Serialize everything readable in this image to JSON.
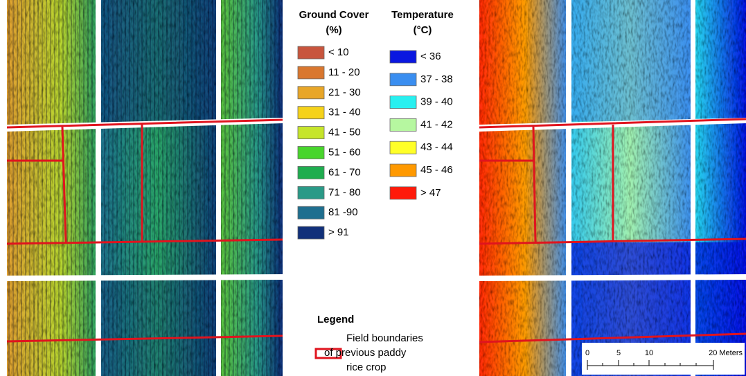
{
  "ground_cover": {
    "title_lines": [
      "Ground Cover",
      "(%)"
    ],
    "classes": [
      {
        "label": "< 10",
        "color": "#c8553d"
      },
      {
        "label": "11 - 20",
        "color": "#d9772f"
      },
      {
        "label": "21 - 30",
        "color": "#e8a628"
      },
      {
        "label": "31 - 40",
        "color": "#f5d21a"
      },
      {
        "label": "41 - 50",
        "color": "#c6e52a"
      },
      {
        "label": "51 - 60",
        "color": "#48d52c"
      },
      {
        "label": "61 - 70",
        "color": "#1fad4f"
      },
      {
        "label": "71 - 80",
        "color": "#2a9a87"
      },
      {
        "label": "81 -90",
        "color": "#1f6f8f"
      },
      {
        "label": "> 91",
        "color": "#11307a"
      }
    ]
  },
  "temperature": {
    "title_lines": [
      "Temperature",
      "(°C)"
    ],
    "classes": [
      {
        "label": "< 36",
        "color": "#0a17e0"
      },
      {
        "label": "37 - 38",
        "color": "#3a8ef0"
      },
      {
        "label": "39 - 40",
        "color": "#28f0f0"
      },
      {
        "label": "41 - 42",
        "color": "#b6f7a0"
      },
      {
        "label": "43 - 44",
        "color": "#ffff28"
      },
      {
        "label": "45 - 46",
        "color": "#ff9900"
      },
      {
        "label": "> 47",
        "color": "#ff1a0a"
      }
    ]
  },
  "legend": {
    "title": "Legend",
    "boundary_lines": [
      "Field boundaries",
      "of previous paddy",
      "rice crop"
    ],
    "boundary_color": "#e0141e"
  },
  "scale_bar": {
    "labels": [
      "0",
      "5",
      "10",
      "20 Meters"
    ]
  }
}
